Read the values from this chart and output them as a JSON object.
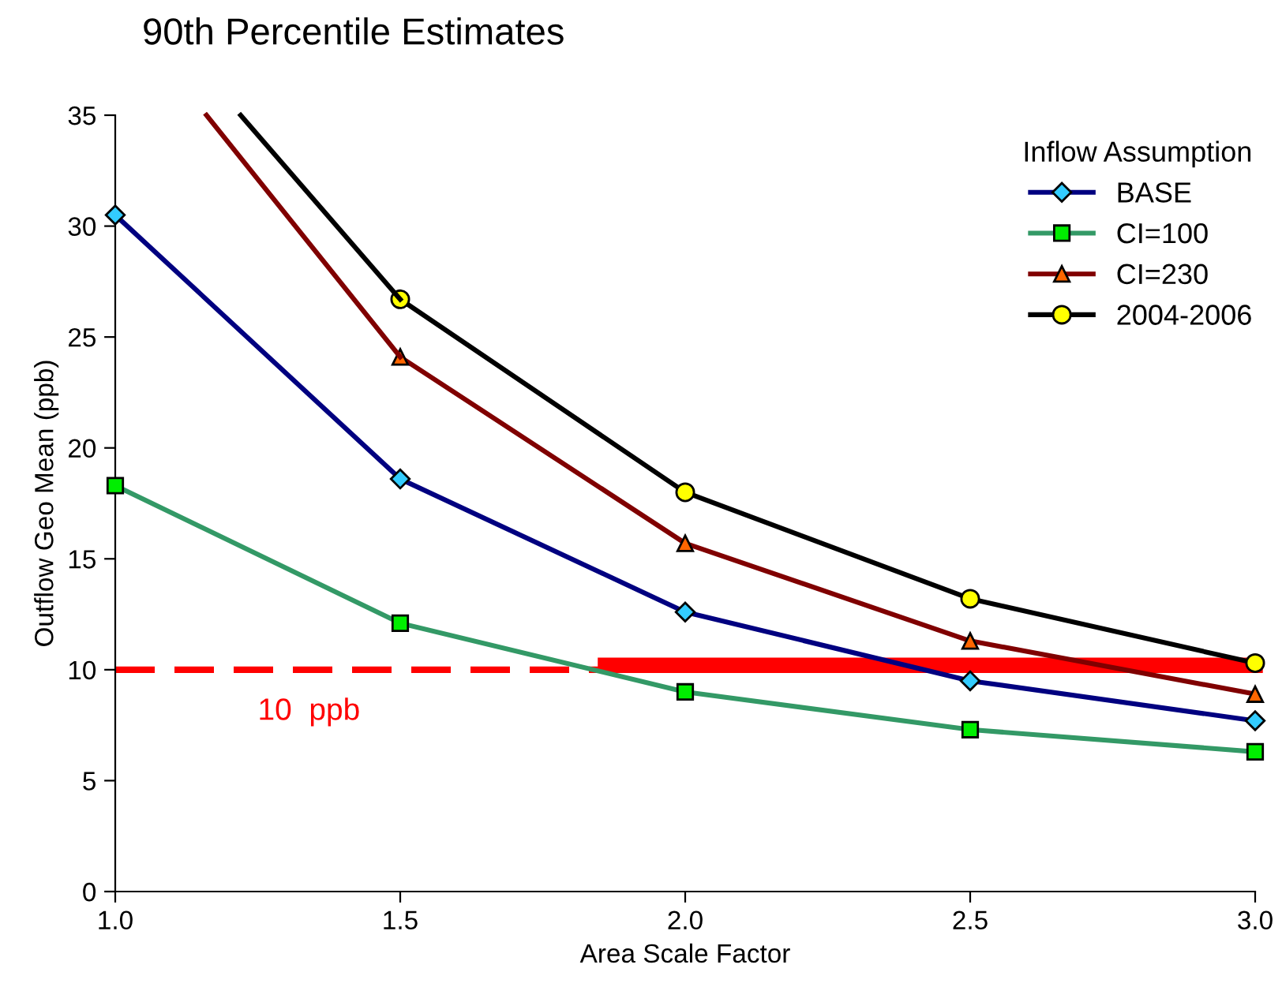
{
  "chart_data": {
    "type": "line",
    "title": "90th Percentile Estimates",
    "xlabel": "Area Scale Factor",
    "ylabel": "Outflow Geo Mean (ppb)",
    "legend_title": "Inflow Assumption",
    "x": [
      1.0,
      1.5,
      2.0,
      2.5,
      3.0
    ],
    "series": [
      {
        "name": "BASE",
        "color": "#000080",
        "marker": "diamond",
        "values": [
          30.5,
          18.6,
          12.6,
          9.5,
          7.7
        ]
      },
      {
        "name": "CI=100",
        "color": "#339966",
        "marker": "square",
        "values": [
          18.3,
          12.1,
          9.0,
          7.3,
          6.3
        ]
      },
      {
        "name": "CI=230",
        "color": "#800000",
        "marker": "triangle",
        "values": [
          null,
          24.1,
          15.7,
          11.3,
          8.9
        ]
      },
      {
        "name": "2004-2006",
        "color": "#000000",
        "marker": "circle",
        "values": [
          null,
          26.7,
          18.0,
          13.2,
          10.3
        ]
      },
      {
        "color": "#800000",
        "marker": "none",
        "x": [
          1.16,
          1.5
        ],
        "values": [
          35,
          24.1
        ]
      },
      {
        "color": "#000000",
        "marker": "none",
        "x": [
          1.22,
          1.5
        ],
        "values": [
          35,
          26.7
        ]
      },
      {
        "color": "#ff0000",
        "marker": "none",
        "x": [
          1.86,
          3.0
        ],
        "values": [
          10.2,
          10.2
        ]
      }
    ],
    "ref_lines": [
      {
        "axis": "y",
        "value": 10,
        "label": "10  ppb",
        "color": "#ff0000",
        "line_style": "dashed"
      }
    ],
    "xlim": [
      1.0,
      3.0
    ],
    "xticks": [
      {
        "value": 1.0,
        "label": "1.0"
      },
      {
        "value": 1.5,
        "label": "1.5"
      },
      {
        "value": 2.0,
        "label": "2.0"
      },
      {
        "value": 2.5,
        "label": "2.5"
      },
      {
        "value": 3.0,
        "label": "3.0"
      }
    ],
    "ylim": [
      0,
      35
    ],
    "yticks": [
      0,
      5,
      10,
      15,
      20,
      25,
      30,
      35
    ],
    "grid": false,
    "legend": "top right"
  }
}
